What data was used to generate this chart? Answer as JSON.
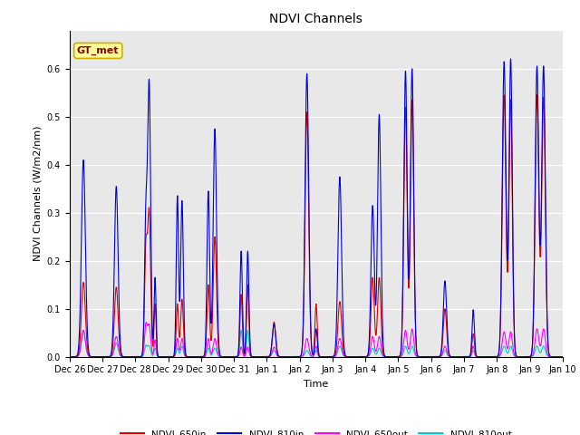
{
  "title": "NDVI Channels",
  "xlabel": "Time",
  "ylabel": "NDVI Channels (W/m2/nm)",
  "ylim": [
    0,
    0.68
  ],
  "bg_color": "#e8e8e8",
  "grid_color": "#ffffff",
  "annotation_text": "GT_met",
  "annotation_box_facecolor": "#ffff99",
  "annotation_box_edgecolor": "#ccaa00",
  "annotation_text_color": "#8b0000",
  "fig_facecolor": "#ffffff",
  "line_colors": {
    "NDVI_650in": "#dd0000",
    "NDVI_810in": "#0000dd",
    "NDVI_650out": "#ff00ff",
    "NDVI_810out": "#00cccc"
  },
  "line_widths": {
    "NDVI_650in": 0.8,
    "NDVI_810in": 0.8,
    "NDVI_650out": 0.8,
    "NDVI_810out": 0.8
  },
  "xtick_labels": [
    "Dec 26",
    "Dec 27",
    "Dec 28",
    "Dec 29",
    "Dec 30",
    "Dec 31",
    "Jan 1",
    "Jan 2",
    "Jan 3",
    "Jan 4",
    "Jan 5",
    "Jan 6",
    "Jan 7",
    "Jan 8",
    "Jan 9",
    "Jan 10"
  ],
  "peaks": [
    [
      0.42,
      0.06,
      0.155,
      0.41,
      0.055,
      0.055
    ],
    [
      1.42,
      0.055,
      0.145,
      0.355,
      0.042,
      0.028
    ],
    [
      2.32,
      0.04,
      0.22,
      0.28,
      0.065,
      0.022
    ],
    [
      2.42,
      0.045,
      0.3,
      0.565,
      0.065,
      0.022
    ],
    [
      2.6,
      0.03,
      0.11,
      0.165,
      0.035,
      0.018
    ],
    [
      3.28,
      0.035,
      0.11,
      0.335,
      0.038,
      0.018
    ],
    [
      3.42,
      0.04,
      0.12,
      0.325,
      0.038,
      0.022
    ],
    [
      4.22,
      0.04,
      0.15,
      0.345,
      0.038,
      0.018
    ],
    [
      4.42,
      0.05,
      0.25,
      0.475,
      0.038,
      0.018
    ],
    [
      5.22,
      0.035,
      0.13,
      0.22,
      0.02,
      0.055
    ],
    [
      5.42,
      0.035,
      0.15,
      0.22,
      0.02,
      0.055
    ],
    [
      6.22,
      0.05,
      0.072,
      0.068,
      0.02,
      0.013
    ],
    [
      7.22,
      0.055,
      0.51,
      0.59,
      0.038,
      0.013
    ],
    [
      7.5,
      0.035,
      0.11,
      0.058,
      0.022,
      0.013
    ],
    [
      8.22,
      0.055,
      0.115,
      0.375,
      0.038,
      0.022
    ],
    [
      9.22,
      0.05,
      0.165,
      0.315,
      0.042,
      0.018
    ],
    [
      9.42,
      0.05,
      0.165,
      0.505,
      0.042,
      0.018
    ],
    [
      10.22,
      0.05,
      0.52,
      0.595,
      0.055,
      0.022
    ],
    [
      10.42,
      0.05,
      0.535,
      0.6,
      0.058,
      0.022
    ],
    [
      11.42,
      0.05,
      0.1,
      0.158,
      0.022,
      0.013
    ],
    [
      12.28,
      0.035,
      0.048,
      0.098,
      0.022,
      0.013
    ],
    [
      13.22,
      0.055,
      0.545,
      0.615,
      0.052,
      0.022
    ],
    [
      13.42,
      0.05,
      0.535,
      0.62,
      0.052,
      0.022
    ],
    [
      14.22,
      0.055,
      0.545,
      0.605,
      0.058,
      0.022
    ],
    [
      14.42,
      0.055,
      0.54,
      0.605,
      0.058,
      0.022
    ]
  ]
}
